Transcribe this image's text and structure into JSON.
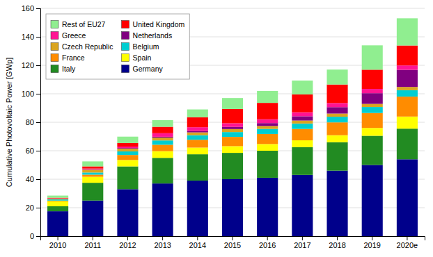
{
  "chart_data": {
    "type": "bar",
    "stacked": true,
    "ylabel": "Cumulative Photovoltaic Power [GWp]",
    "categories": [
      "2010",
      "2011",
      "2012",
      "2013",
      "2014",
      "2015",
      "2016",
      "2017",
      "2018",
      "2019",
      "2020e"
    ],
    "series": [
      {
        "name": "Germany",
        "color": "#00008B",
        "values": [
          17.5,
          25.0,
          33.0,
          37.0,
          39.0,
          40.0,
          41.0,
          43.0,
          46.0,
          50.0,
          54.0
        ]
      },
      {
        "name": "Italy",
        "color": "#228B22",
        "values": [
          3.5,
          12.5,
          16.0,
          18.0,
          18.5,
          18.5,
          19.0,
          19.5,
          20.0,
          20.5,
          21.5
        ]
      },
      {
        "name": "Spain",
        "color": "#FFFF00",
        "values": [
          3.5,
          4.2,
          4.5,
          4.7,
          4.7,
          4.7,
          4.7,
          4.8,
          4.9,
          5.5,
          8.5
        ]
      },
      {
        "name": "France",
        "color": "#FF8C00",
        "values": [
          0.5,
          1.5,
          3.5,
          4.5,
          5.5,
          6.5,
          7.0,
          8.0,
          9.0,
          10.5,
          14.0
        ]
      },
      {
        "name": "Belgium",
        "color": "#00CED1",
        "values": [
          0.8,
          1.5,
          2.5,
          3.0,
          3.2,
          3.4,
          3.6,
          3.8,
          4.0,
          4.2,
          4.5
        ]
      },
      {
        "name": "Czech Republic",
        "color": "#DAA520",
        "values": [
          0.5,
          2.0,
          2.0,
          2.0,
          2.0,
          2.1,
          2.1,
          2.1,
          2.2,
          2.2,
          2.3
        ]
      },
      {
        "name": "Netherlands",
        "color": "#800080",
        "values": [
          0.1,
          0.2,
          0.4,
          0.6,
          1.0,
          1.5,
          2.0,
          3.0,
          4.5,
          7.5,
          12.0
        ]
      },
      {
        "name": "Greece",
        "color": "#FF1493",
        "values": [
          0.2,
          0.6,
          1.0,
          2.5,
          2.6,
          2.6,
          2.7,
          2.8,
          2.9,
          3.0,
          3.1
        ]
      },
      {
        "name": "United Kingdom",
        "color": "#FF0000",
        "values": [
          0.4,
          1.5,
          2.5,
          4.5,
          7.0,
          10.0,
          11.5,
          12.5,
          13.0,
          13.5,
          14.0
        ]
      },
      {
        "name": "Rest of EU27",
        "color": "#90EE90",
        "values": [
          1.5,
          3.5,
          4.5,
          4.7,
          5.5,
          7.7,
          8.4,
          9.8,
          10.5,
          17.1,
          19.1
        ]
      }
    ],
    "ylim": [
      0,
      160
    ],
    "yticks": [
      0,
      20,
      40,
      60,
      80,
      100,
      120,
      140,
      160
    ],
    "grid": true,
    "legend": "upper left"
  }
}
